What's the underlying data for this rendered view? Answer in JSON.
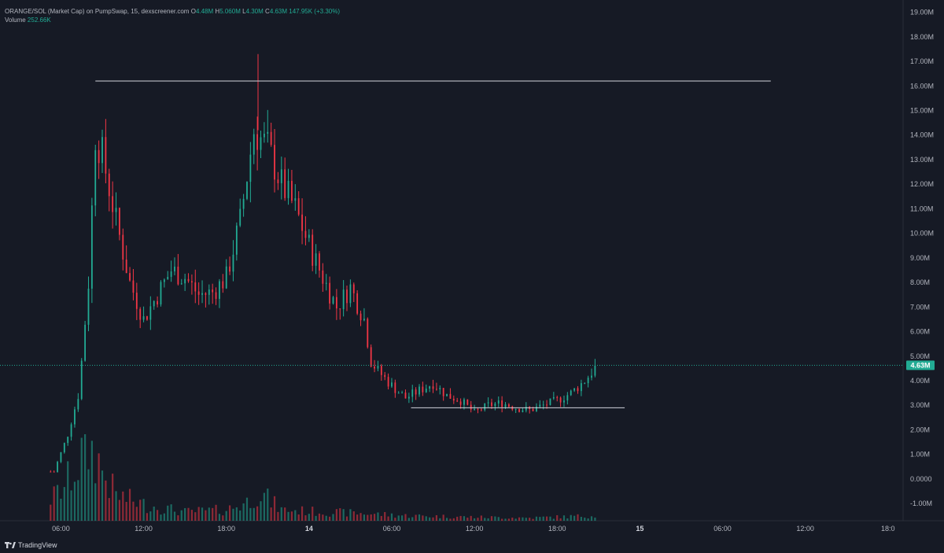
{
  "header": {
    "symbol": "ORANGE/SOL (Market Cap) on PumpSwap, 15, dexscreener.com",
    "o_label": "O",
    "o_value": "4.48M",
    "h_label": "H",
    "h_value": "5.060M",
    "l_label": "L",
    "l_value": "4.30M",
    "c_label": "C",
    "c_value": "4.63M",
    "change": "147.95K (+3.30%)",
    "volume_label": "Volume",
    "volume_value": "252.66K"
  },
  "branding": {
    "label": "TradingView"
  },
  "colors": {
    "up": "#22ab94",
    "down": "#f23645",
    "background": "#161a25",
    "line": "#d1d4dc"
  },
  "chart_data": {
    "type": "candlestick",
    "y_ticks": [
      "19.00M",
      "18.00M",
      "17.00M",
      "16.00M",
      "15.00M",
      "14.00M",
      "13.00M",
      "12.00M",
      "11.00M",
      "10.00M",
      "9.00M",
      "8.00M",
      "7.00M",
      "6.00M",
      "5.00M",
      "4.00M",
      "3.00M",
      "2.00M",
      "1.00M",
      "0.0000",
      "-1.00M"
    ],
    "ylim": [
      -1.7,
      19.5
    ],
    "x_ticks": [
      {
        "label": "06:00",
        "hour": 6,
        "bold": false
      },
      {
        "label": "12:00",
        "hour": 12,
        "bold": false
      },
      {
        "label": "18:00",
        "hour": 18,
        "bold": false
      },
      {
        "label": "14",
        "hour": 24,
        "bold": true
      },
      {
        "label": "06:00",
        "hour": 30,
        "bold": false
      },
      {
        "label": "12:00",
        "hour": 36,
        "bold": false
      },
      {
        "label": "18:00",
        "hour": 42,
        "bold": false
      },
      {
        "label": "15",
        "hour": 48,
        "bold": true
      },
      {
        "label": "06:00",
        "hour": 54,
        "bold": false
      },
      {
        "label": "12:00",
        "hour": 60,
        "bold": false
      },
      {
        "label": "18:0",
        "hour": 66,
        "bold": false
      }
    ],
    "xlim_hours": [
      1.58,
      67.1
    ],
    "last_price": 4.63,
    "last_price_label": "4.63M",
    "resistance_line": {
      "value": 16.2,
      "from_hour": 8.5,
      "to_hour": 57.5
    },
    "support_line": {
      "value": 2.9,
      "from_hour": 31.4,
      "to_hour": 46.9
    },
    "key_closes": [
      {
        "hour": 5.5,
        "close": 0.3
      },
      {
        "hour": 6.5,
        "close": 1.8
      },
      {
        "hour": 7.3,
        "close": 3.5
      },
      {
        "hour": 8.0,
        "close": 8.0
      },
      {
        "hour": 8.5,
        "close": 14.0
      },
      {
        "hour": 9.0,
        "close": 13.2
      },
      {
        "hour": 10.0,
        "close": 10.5
      },
      {
        "hour": 11.0,
        "close": 8.0
      },
      {
        "hour": 12.0,
        "close": 6.5
      },
      {
        "hour": 13.0,
        "close": 7.5
      },
      {
        "hour": 14.0,
        "close": 8.5
      },
      {
        "hour": 15.0,
        "close": 8.2
      },
      {
        "hour": 16.0,
        "close": 7.5
      },
      {
        "hour": 17.0,
        "close": 7.6
      },
      {
        "hour": 18.0,
        "close": 8.2
      },
      {
        "hour": 19.0,
        "close": 10.5
      },
      {
        "hour": 20.0,
        "close": 14.2
      },
      {
        "hour": 21.0,
        "close": 13.5
      },
      {
        "hour": 22.0,
        "close": 12.0
      },
      {
        "hour": 23.0,
        "close": 11.0
      },
      {
        "hour": 24.0,
        "close": 9.5
      },
      {
        "hour": 25.0,
        "close": 8.2
      },
      {
        "hour": 26.0,
        "close": 7.0
      },
      {
        "hour": 27.0,
        "close": 7.8
      },
      {
        "hour": 28.0,
        "close": 6.5
      },
      {
        "hour": 28.5,
        "close": 4.8
      },
      {
        "hour": 29.0,
        "close": 4.4
      },
      {
        "hour": 30.0,
        "close": 3.8
      },
      {
        "hour": 31.0,
        "close": 3.3
      },
      {
        "hour": 32.0,
        "close": 3.6
      },
      {
        "hour": 33.0,
        "close": 3.9
      },
      {
        "hour": 34.0,
        "close": 3.4
      },
      {
        "hour": 35.0,
        "close": 3.2
      },
      {
        "hour": 36.0,
        "close": 2.7
      },
      {
        "hour": 37.0,
        "close": 3.0
      },
      {
        "hour": 38.0,
        "close": 3.1
      },
      {
        "hour": 39.0,
        "close": 2.9
      },
      {
        "hour": 40.0,
        "close": 2.8
      },
      {
        "hour": 41.0,
        "close": 3.0
      },
      {
        "hour": 42.0,
        "close": 3.2
      },
      {
        "hour": 43.0,
        "close": 3.5
      },
      {
        "hour": 44.0,
        "close": 4.0
      },
      {
        "hour": 44.9,
        "close": 4.63
      }
    ],
    "key_volumes": [
      {
        "hour": 5.3,
        "vol": 0.3
      },
      {
        "hour": 6.2,
        "vol": 0.45
      },
      {
        "hour": 7.2,
        "vol": 0.75
      },
      {
        "hour": 7.8,
        "vol": 1.0
      },
      {
        "hour": 8.5,
        "vol": 0.9
      },
      {
        "hour": 9.2,
        "vol": 0.6
      },
      {
        "hour": 10.0,
        "vol": 0.35
      },
      {
        "hour": 12.0,
        "vol": 0.22
      },
      {
        "hour": 15.0,
        "vol": 0.12
      },
      {
        "hour": 18.0,
        "vol": 0.15
      },
      {
        "hour": 19.5,
        "vol": 0.25
      },
      {
        "hour": 20.3,
        "vol": 0.4
      },
      {
        "hour": 22.0,
        "vol": 0.15
      },
      {
        "hour": 25.0,
        "vol": 0.12
      },
      {
        "hour": 28.0,
        "vol": 0.1
      },
      {
        "hour": 31.0,
        "vol": 0.07
      },
      {
        "hour": 36.0,
        "vol": 0.05
      },
      {
        "hour": 40.0,
        "vol": 0.04
      },
      {
        "hour": 44.9,
        "vol": 0.07
      }
    ]
  }
}
